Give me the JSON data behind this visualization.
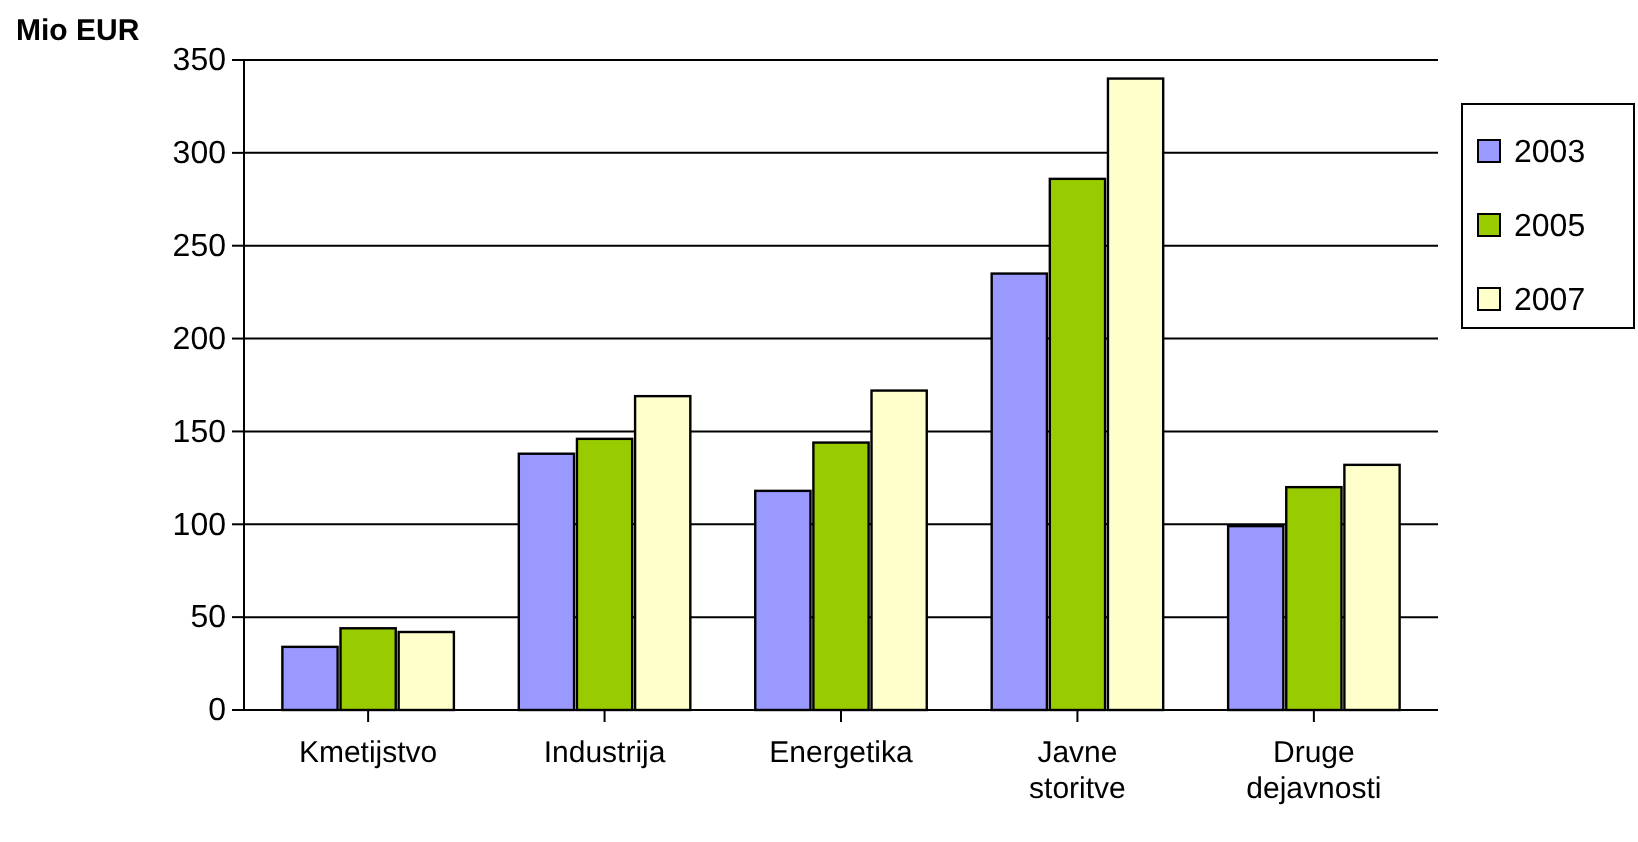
{
  "chart_data": {
    "type": "bar",
    "ylabel": "Mio EUR",
    "categories": [
      "Kmetijstvo",
      "Industrija",
      "Energetika",
      "Javne storitve",
      "Druge dejavnosti"
    ],
    "series": [
      {
        "name": "2003",
        "color": "#9999ff",
        "values": [
          34,
          138,
          118,
          235,
          99
        ]
      },
      {
        "name": "2005",
        "color": "#99cc00",
        "values": [
          44,
          146,
          144,
          286,
          120
        ]
      },
      {
        "name": "2007",
        "color": "#ffffcc",
        "values": [
          42,
          169,
          172,
          340,
          132
        ]
      }
    ],
    "ylim": [
      0,
      350
    ],
    "yticks": [
      0,
      50,
      100,
      150,
      200,
      250,
      300,
      350
    ],
    "grid": "y",
    "legend": "right"
  }
}
